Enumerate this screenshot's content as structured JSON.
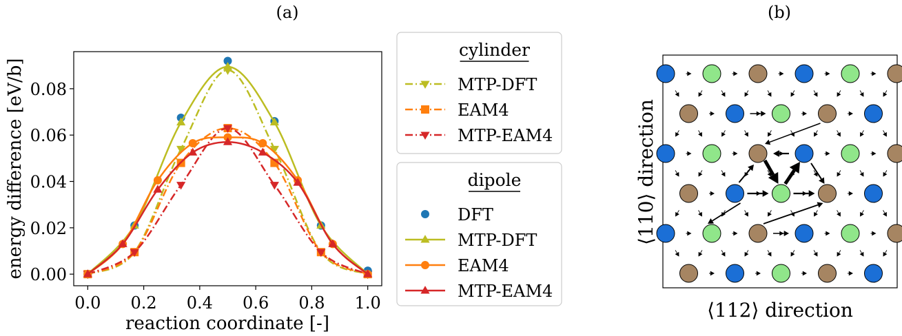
{
  "panels": {
    "a_label": "(a)",
    "b_label": "(b)"
  },
  "chart_data": [
    {
      "type": "line",
      "panel": "a",
      "xlabel": "reaction coordinate [-]",
      "ylabel": "energy difference [eV/b]",
      "xlim": [
        -0.05,
        1.05
      ],
      "ylim": [
        -0.005,
        0.096
      ],
      "xticks": [
        "0.0",
        "0.2",
        "0.4",
        "0.6",
        "0.8",
        "1.0"
      ],
      "yticks": [
        "0.00",
        "0.02",
        "0.04",
        "0.06",
        "0.08"
      ],
      "grid": false,
      "legend_groups": [
        {
          "title": "cylinder",
          "entries": [
            "MTP-DFT",
            "EAM4",
            "MTP-EAM4"
          ]
        },
        {
          "title": "dipole",
          "entries": [
            "DFT",
            "MTP-DFT",
            "EAM4",
            "MTP-EAM4"
          ]
        }
      ],
      "series": [
        {
          "name": "MTP-DFT",
          "group": "cylinder",
          "color": "#bcbd22",
          "marker": "triangle-down",
          "linestyle": "dash-dot",
          "x": [
            0.0,
            0.167,
            0.333,
            0.5,
            0.667,
            0.833,
            1.0
          ],
          "y": [
            0.0,
            0.0095,
            0.054,
            0.088,
            0.054,
            0.0095,
            0.0
          ]
        },
        {
          "name": "EAM4",
          "group": "cylinder",
          "color": "#ff7f0e",
          "marker": "square",
          "linestyle": "dash-dot",
          "x": [
            0.0,
            0.167,
            0.333,
            0.5,
            0.667,
            0.833,
            1.0
          ],
          "y": [
            0.0,
            0.0095,
            0.048,
            0.063,
            0.048,
            0.0095,
            0.0
          ]
        },
        {
          "name": "MTP-EAM4",
          "group": "cylinder",
          "color": "#d62728",
          "marker": "triangle-down",
          "linestyle": "dash-dot",
          "x": [
            0.0,
            0.167,
            0.333,
            0.5,
            0.667,
            0.833,
            1.0
          ],
          "y": [
            0.0,
            0.0095,
            0.0385,
            0.063,
            0.0385,
            0.0095,
            0.0
          ]
        },
        {
          "name": "DFT",
          "group": "dipole",
          "color": "#1f77b4",
          "marker": "circle",
          "linestyle": "none",
          "x": [
            0.0,
            0.167,
            0.333,
            0.5,
            0.667,
            0.833,
            1.0
          ],
          "y": [
            0.0,
            0.021,
            0.0675,
            0.092,
            0.066,
            0.021,
            0.0015
          ]
        },
        {
          "name": "MTP-DFT",
          "group": "dipole",
          "color": "#bcbd22",
          "marker": "triangle-up",
          "linestyle": "solid",
          "x": [
            0.0,
            0.167,
            0.333,
            0.5,
            0.667,
            0.833,
            1.0
          ],
          "y": [
            0.0,
            0.021,
            0.0655,
            0.0895,
            0.0655,
            0.021,
            0.0
          ]
        },
        {
          "name": "EAM4",
          "group": "dipole",
          "color": "#ff7f0e",
          "marker": "circle",
          "linestyle": "solid",
          "x": [
            0.0,
            0.125,
            0.25,
            0.375,
            0.5,
            0.625,
            0.75,
            0.875,
            1.0
          ],
          "y": [
            0.0,
            0.013,
            0.0405,
            0.0565,
            0.059,
            0.0565,
            0.0405,
            0.013,
            0.0
          ]
        },
        {
          "name": "MTP-EAM4",
          "group": "dipole",
          "color": "#d62728",
          "marker": "triangle-up",
          "linestyle": "solid",
          "x": [
            0.0,
            0.125,
            0.25,
            0.375,
            0.5,
            0.625,
            0.75,
            0.875,
            1.0
          ],
          "y": [
            0.0,
            0.013,
            0.0365,
            0.0525,
            0.057,
            0.0525,
            0.0395,
            0.013,
            0.0
          ]
        }
      ]
    },
    {
      "type": "diagram",
      "panel": "b",
      "xlabel": "⟨112⟩ direction",
      "ylabel": "⟨110⟩ direction",
      "atom_colors": {
        "blue": "#1b6fd6",
        "green": "#90e68a",
        "brown": "#a68562"
      },
      "atom_rows": [
        [
          "blue",
          "green",
          "brown",
          "blue",
          "green",
          "brown"
        ],
        [
          "brown",
          "blue",
          "green",
          "brown",
          "blue"
        ],
        [
          "blue",
          "green",
          "brown",
          "blue",
          "green",
          "brown"
        ],
        [
          "brown",
          "blue",
          "green",
          "brown",
          "blue"
        ],
        [
          "blue",
          "green",
          "brown",
          "blue",
          "green",
          "brown"
        ],
        [
          "brown",
          "blue",
          "green",
          "brown",
          "blue"
        ]
      ]
    }
  ]
}
